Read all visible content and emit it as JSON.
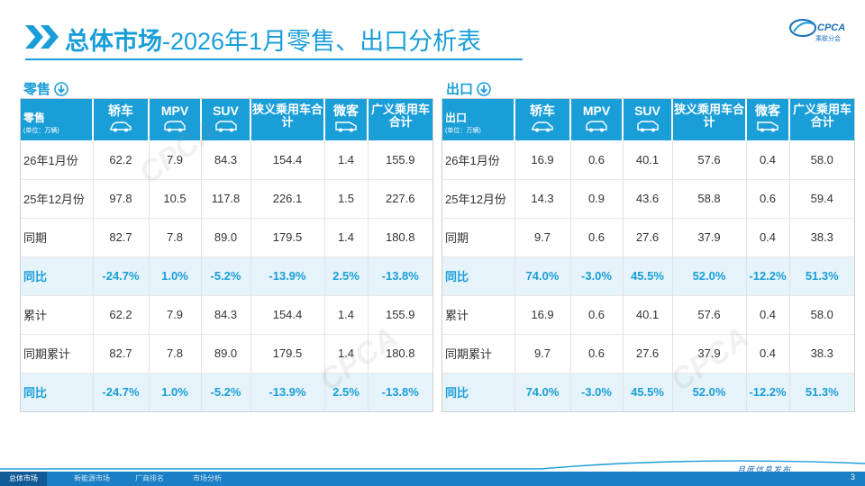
{
  "header": {
    "title_lead": "总体市场",
    "title_rest": "-2026年1月零售、出口分析表",
    "logo_text": "CPCA",
    "logo_sub": "乘联分会"
  },
  "retail": {
    "label": "零售",
    "corner_main": "零售",
    "corner_unit": "(单位：万辆)",
    "headers": [
      "轿车",
      "MPV",
      "SUV",
      "狭义乘用车合计",
      "微客",
      "广义乘用车合计"
    ],
    "rows": [
      {
        "label": "26年1月份",
        "values": [
          "62.2",
          "7.9",
          "84.3",
          "154.4",
          "1.4",
          "155.9"
        ],
        "pct": false
      },
      {
        "label": "25年12月份",
        "values": [
          "97.8",
          "10.5",
          "117.8",
          "226.1",
          "1.5",
          "227.6"
        ],
        "pct": false
      },
      {
        "label": "同期",
        "values": [
          "82.7",
          "7.8",
          "89.0",
          "179.5",
          "1.4",
          "180.8"
        ],
        "pct": false
      },
      {
        "label": "同比",
        "values": [
          "-24.7%",
          "1.0%",
          "-5.2%",
          "-13.9%",
          "2.5%",
          "-13.8%"
        ],
        "pct": true
      },
      {
        "label": "累计",
        "values": [
          "62.2",
          "7.9",
          "84.3",
          "154.4",
          "1.4",
          "155.9"
        ],
        "pct": false
      },
      {
        "label": "同期累计",
        "values": [
          "82.7",
          "7.8",
          "89.0",
          "179.5",
          "1.4",
          "180.8"
        ],
        "pct": false
      },
      {
        "label": "同比",
        "values": [
          "-24.7%",
          "1.0%",
          "-5.2%",
          "-13.9%",
          "2.5%",
          "-13.8%"
        ],
        "pct": true
      }
    ]
  },
  "export": {
    "label": "出口",
    "corner_main": "出口",
    "corner_unit": "(单位：万辆)",
    "headers": [
      "轿车",
      "MPV",
      "SUV",
      "狭义乘用车合计",
      "微客",
      "广义乘用车合计"
    ],
    "rows": [
      {
        "label": "26年1月份",
        "values": [
          "16.9",
          "0.6",
          "40.1",
          "57.6",
          "0.4",
          "58.0"
        ],
        "pct": false
      },
      {
        "label": "25年12月份",
        "values": [
          "14.3",
          "0.9",
          "43.6",
          "58.8",
          "0.6",
          "59.4"
        ],
        "pct": false
      },
      {
        "label": "同期",
        "values": [
          "9.7",
          "0.6",
          "27.6",
          "37.9",
          "0.4",
          "38.3"
        ],
        "pct": false
      },
      {
        "label": "同比",
        "values": [
          "74.0%",
          "-3.0%",
          "45.5%",
          "52.0%",
          "-12.2%",
          "51.3%"
        ],
        "pct": true
      },
      {
        "label": "累计",
        "values": [
          "16.9",
          "0.6",
          "40.1",
          "57.6",
          "0.4",
          "58.0"
        ],
        "pct": false
      },
      {
        "label": "同期累计",
        "values": [
          "9.7",
          "0.6",
          "27.6",
          "37.9",
          "0.4",
          "38.3"
        ],
        "pct": false
      },
      {
        "label": "同比",
        "values": [
          "74.0%",
          "-3.0%",
          "45.5%",
          "52.0%",
          "-12.2%",
          "51.3%"
        ],
        "pct": true
      }
    ]
  },
  "footer": {
    "caption": "月度信息发布",
    "page_number": "3",
    "tabs": [
      "总体市场",
      "新能源市场",
      "厂商排名",
      "市场分析"
    ],
    "active_tab": 0
  },
  "colors": {
    "accent": "#1a9ed8",
    "pct_row_bg": "#e6f3fa",
    "footer_bar": "#1a7fc4",
    "active_tab": "#105a96"
  }
}
